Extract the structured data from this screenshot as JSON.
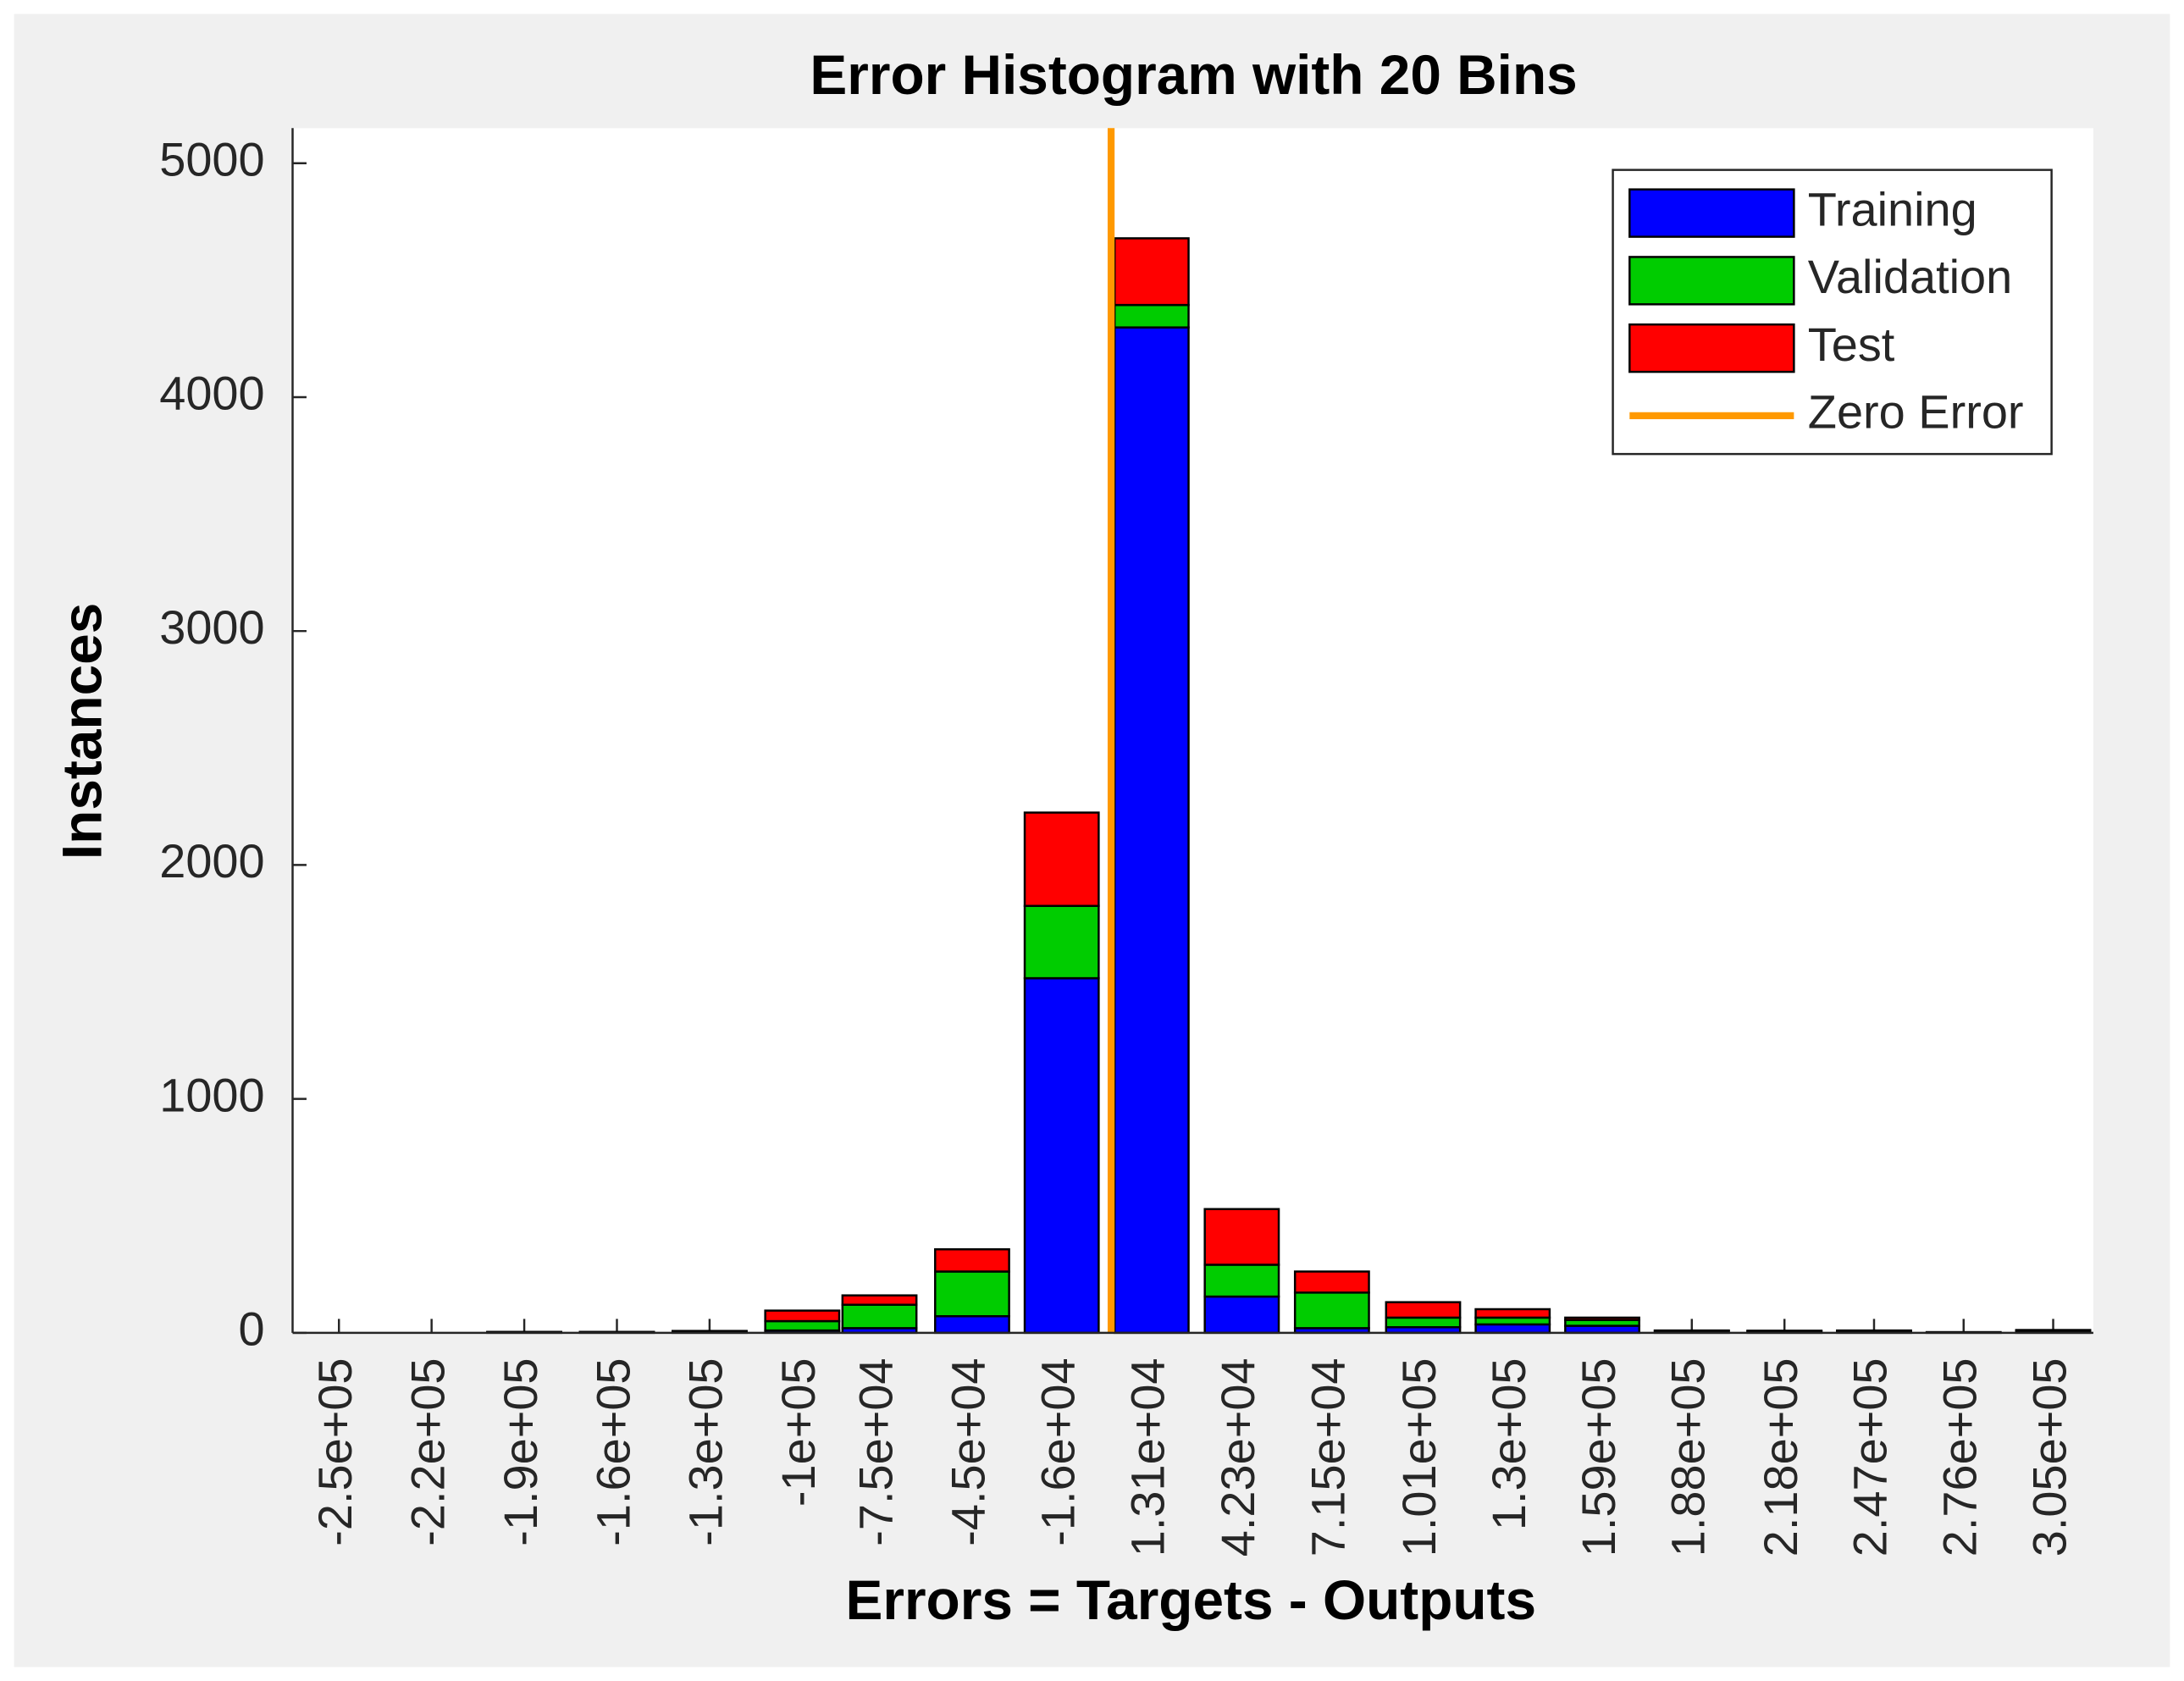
{
  "chart_data": {
    "type": "stacked_bar",
    "title": "Error Histogram with 20 Bins",
    "x_label": "Errors = Targets - Outputs",
    "y_label": "Instances",
    "x": [
      -250000,
      -220000,
      -190000,
      -160000,
      -130000,
      -100000,
      -75000,
      -45000,
      -16000,
      13100,
      42300,
      71500,
      101000,
      130000,
      159000,
      188000,
      218000,
      247000,
      276000,
      305000
    ],
    "xticks": [
      {
        "value": -250000,
        "label": "-2.5e+05"
      },
      {
        "value": -220000,
        "label": "-2.2e+05"
      },
      {
        "value": -190000,
        "label": "-1.9e+05"
      },
      {
        "value": -160000,
        "label": "-1.6e+05"
      },
      {
        "value": -130000,
        "label": "-1.3e+05"
      },
      {
        "value": -100000,
        "label": "-1e+05"
      },
      {
        "value": -75000,
        "label": "-7.5e+04"
      },
      {
        "value": -45000,
        "label": "-4.5e+04"
      },
      {
        "value": -16000,
        "label": "-1.6e+04"
      },
      {
        "value": 13100,
        "label": "1.31e+04"
      },
      {
        "value": 42300,
        "label": "4.23e+04"
      },
      {
        "value": 71500,
        "label": "7.15e+04"
      },
      {
        "value": 101000,
        "label": "1.01e+05"
      },
      {
        "value": 130000,
        "label": "1.3e+05"
      },
      {
        "value": 159000,
        "label": "1.59e+05"
      },
      {
        "value": 188000,
        "label": "1.88e+05"
      },
      {
        "value": 218000,
        "label": "2.18e+05"
      },
      {
        "value": 247000,
        "label": "2.47e+05"
      },
      {
        "value": 276000,
        "label": "2.76e+05"
      },
      {
        "value": 305000,
        "label": "3.05e+05"
      }
    ],
    "xlim": [
      -265000,
      318000
    ],
    "ylim": [
      0,
      5150
    ],
    "yticks": [
      0,
      1000,
      2000,
      3000,
      4000,
      5000
    ],
    "series": [
      {
        "name": "Training",
        "color": "#0000ff",
        "values": [
          0,
          0,
          2,
          2,
          5,
          10,
          20,
          71,
          1516,
          4298,
          155,
          20,
          24,
          36,
          30,
          8,
          6,
          6,
          3,
          8
        ]
      },
      {
        "name": "Validation",
        "color": "#00cc00",
        "values": [
          0,
          0,
          1,
          1,
          2,
          40,
          100,
          191,
          309,
          96,
          136,
          152,
          41,
          29,
          25,
          1,
          2,
          2,
          0,
          2
        ]
      },
      {
        "name": "Test",
        "color": "#ff0000",
        "values": [
          0,
          0,
          1,
          1,
          1,
          45,
          40,
          95,
          399,
          285,
          238,
          90,
          66,
          36,
          10,
          1,
          1,
          2,
          0,
          2
        ]
      }
    ],
    "reference_line": {
      "name": "Zero Error",
      "color": "#ff9900",
      "x": 0
    },
    "legend": "upper right"
  }
}
